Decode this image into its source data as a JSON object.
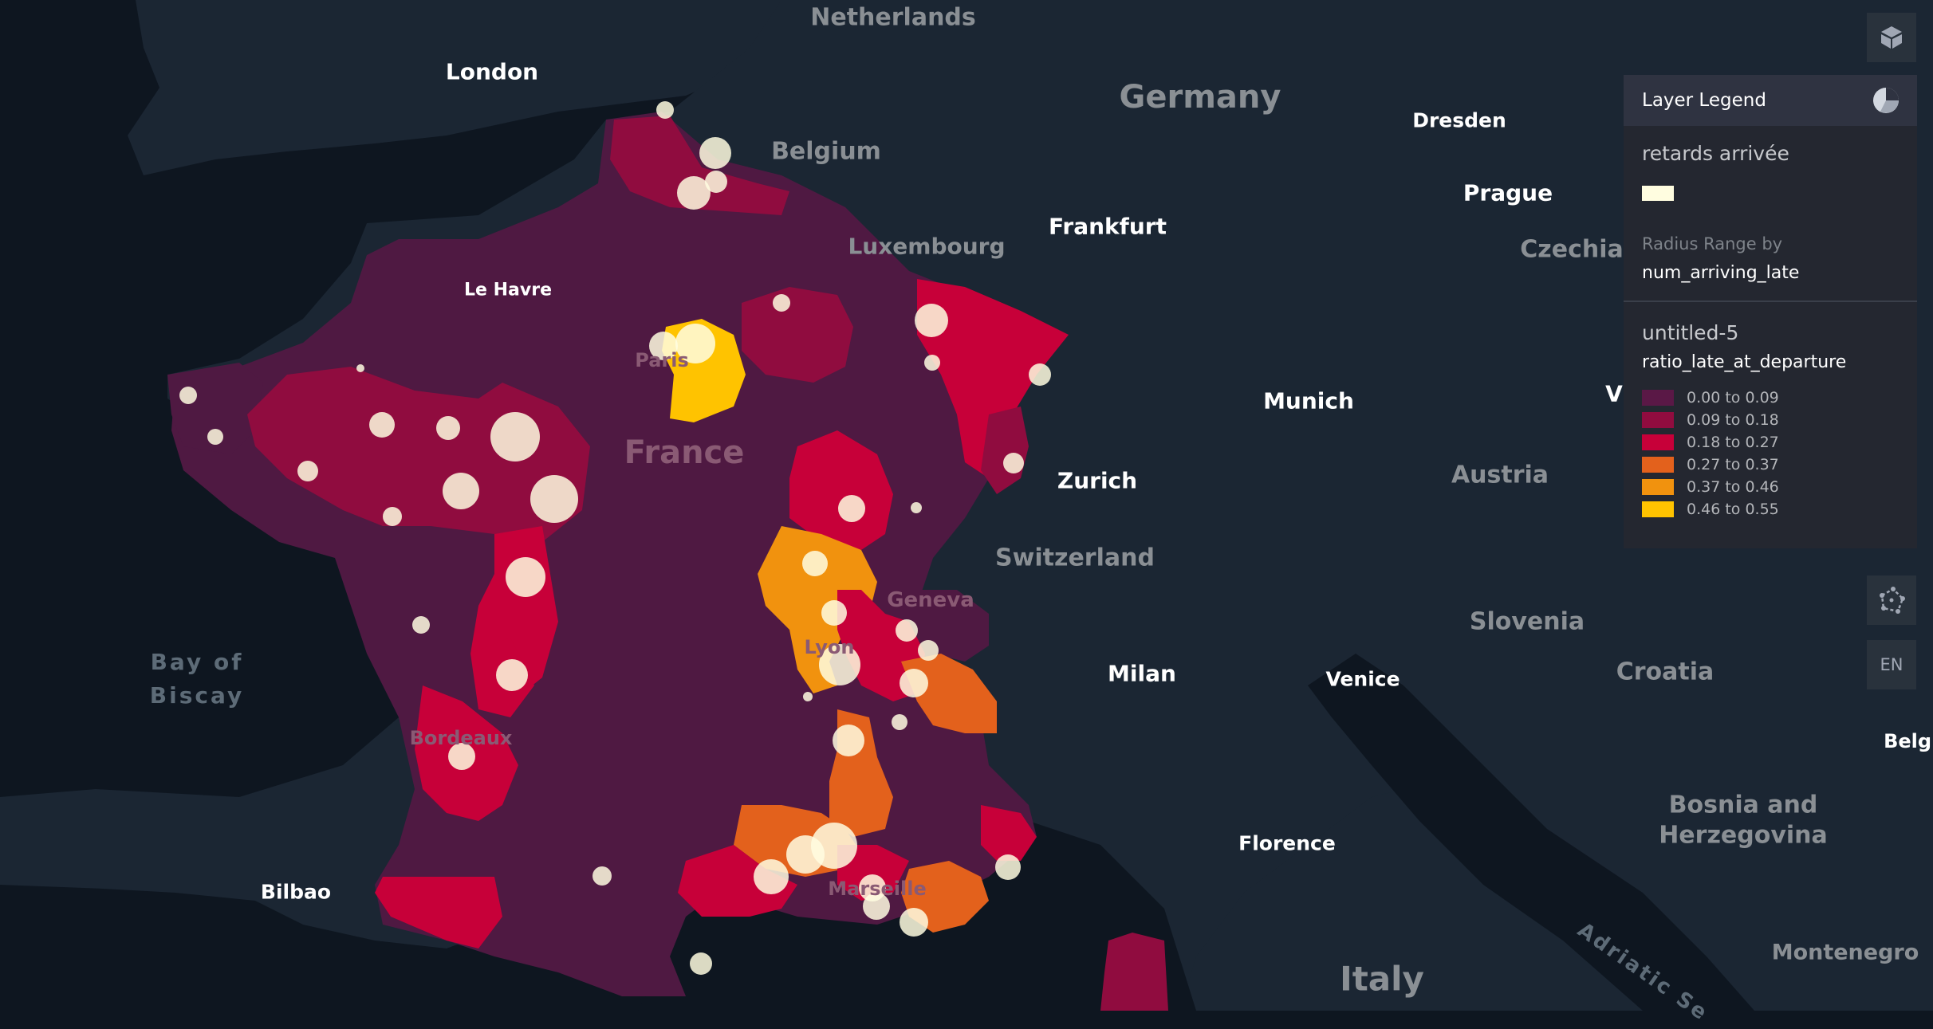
{
  "map": {
    "country_labels": [
      {
        "name": "Netherlands"
      },
      {
        "name": "Germany"
      },
      {
        "name": "Belgium"
      },
      {
        "name": "Luxembourg"
      },
      {
        "name": "Czechia"
      },
      {
        "name": "Austria"
      },
      {
        "name": "Switzerland"
      },
      {
        "name": "Slovenia"
      },
      {
        "name": "Croatia"
      },
      {
        "name": "Bosnia and\nHerzegovina"
      },
      {
        "name": "Montenegro"
      },
      {
        "name": "Italy"
      },
      {
        "name": "France"
      }
    ],
    "city_labels": [
      {
        "name": "London"
      },
      {
        "name": "Dresden"
      },
      {
        "name": "Prague"
      },
      {
        "name": "Frankfurt"
      },
      {
        "name": "Le Havre"
      },
      {
        "name": "Paris"
      },
      {
        "name": "Munich"
      },
      {
        "name": "Zurich"
      },
      {
        "name": "Geneva"
      },
      {
        "name": "Milan"
      },
      {
        "name": "Venice"
      },
      {
        "name": "Bordeaux"
      },
      {
        "name": "Florence"
      },
      {
        "name": "Bilbao"
      },
      {
        "name": "Marseille"
      },
      {
        "name": "Lyon"
      },
      {
        "name": "Belgr"
      },
      {
        "name": "V"
      }
    ],
    "sea_labels": [
      {
        "name": "Bay of\nBiscay"
      },
      {
        "name": "Adriatic Se"
      }
    ],
    "colors": {
      "background": "#0e1620",
      "land": "#1b2633",
      "france_base": "#4f1942",
      "point": "#fffde0"
    }
  },
  "controls": {
    "lang_label": "EN",
    "layers_icon": "cube-icon",
    "legend_toggle_icon": "pie-chart-icon",
    "draw_icon": "polygon-draw-icon"
  },
  "legend": {
    "title": "Layer Legend",
    "layer1": {
      "name": "retards arrivée",
      "color": "#fffde0",
      "radius_label": "Radius Range by",
      "radius_field": "num_arriving_late"
    },
    "layer2": {
      "name": "untitled-5",
      "field": "ratio_late_at_departure",
      "ranges": [
        {
          "label": "0.00 to 0.09",
          "color": "#5a1846"
        },
        {
          "label": "0.09 to 0.18",
          "color": "#900c3f"
        },
        {
          "label": "0.18 to 0.27",
          "color": "#c70039"
        },
        {
          "label": "0.27 to 0.37",
          "color": "#e3611c"
        },
        {
          "label": "0.37 to 0.46",
          "color": "#f1920e"
        },
        {
          "label": "0.46 to 0.55",
          "color": "#ffc300"
        }
      ]
    }
  }
}
